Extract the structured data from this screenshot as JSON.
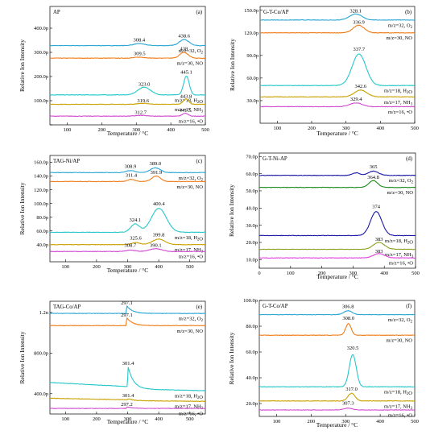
{
  "y_axis_label": "Relative Ion Intensity",
  "x_axis_label": "Temperature / °C",
  "chart_data": [
    {
      "type": "line",
      "panel": "(a)",
      "title": "AP",
      "xlim": [
        50,
        500
      ],
      "ylim": [
        0,
        490
      ],
      "yticks": [
        0,
        100,
        200,
        300,
        400
      ],
      "ytick_labels": [
        "",
        "100.0p",
        "200.0p",
        "300.0p",
        "400.0p"
      ],
      "xticks": [
        100,
        200,
        300,
        400,
        500
      ],
      "series": [
        {
          "name": "m/z=32, O₂",
          "color": "#2aa7d5",
          "base": 328,
          "shoulders": [
            [
              308.4,
              8,
              16
            ]
          ],
          "peaks": [
            [
              438.6,
              25,
              14
            ]
          ]
        },
        {
          "name": "m/z=30, NO",
          "color": "#f07d1a",
          "base": 276,
          "shoulders": [
            [
              309.5,
              4,
              16
            ]
          ],
          "peaks": [
            [
              438.0,
              24,
              12
            ]
          ]
        },
        {
          "name": "m/z=18, H₂O",
          "color": "#27c7c9",
          "base": 124,
          "shoulders": [
            [
              323.0,
              32,
              18
            ]
          ],
          "peaks": [
            [
              445.1,
              78,
              8
            ]
          ]
        },
        {
          "name": "m/z=17, NH₃",
          "color": "#c9a100",
          "base": 85,
          "shoulders": [
            [
              319.6,
              4,
              16
            ]
          ],
          "peaks": [
            [
              443.8,
              22,
              8
            ]
          ]
        },
        {
          "name": "m/z=16, •O",
          "color": "#d14bd1",
          "base": 36,
          "shoulders": [
            [
              312.7,
              3,
              16
            ]
          ],
          "peaks": [
            [
              441.5,
              12,
              8
            ]
          ]
        }
      ],
      "annotations": [
        {
          "text": "308.4",
          "x": 308.4,
          "y": 345
        },
        {
          "text": "438.6",
          "x": 438.6,
          "y": 362
        },
        {
          "text": "309.5",
          "x": 309.5,
          "y": 289
        },
        {
          "text": "438",
          "x": 438.0,
          "y": 308
        },
        {
          "text": "445.1",
          "x": 445.1,
          "y": 211
        },
        {
          "text": "323.0",
          "x": 323.0,
          "y": 162
        },
        {
          "text": "319.6",
          "x": 319.6,
          "y": 94
        },
        {
          "text": "443.8",
          "x": 443.8,
          "y": 111
        },
        {
          "text": "312.7",
          "x": 312.7,
          "y": 45
        },
        {
          "text": "441.5",
          "x": 441.5,
          "y": 54
        }
      ]
    },
    {
      "type": "line",
      "panel": "(b)",
      "title": "G-T-Cu/AP",
      "xlim": [
        50,
        500
      ],
      "ylim": [
        0,
        155
      ],
      "yticks": [
        30,
        60,
        90,
        120,
        150
      ],
      "ytick_labels": [
        "30.0p",
        "60.0p",
        "90.0p",
        "120.0p",
        "150.0p"
      ],
      "xticks": [
        100,
        200,
        300,
        400,
        500
      ],
      "series": [
        {
          "name": "m/z=32, O₂",
          "color": "#2aa7d5",
          "base": 137,
          "shoulders": [],
          "peaks": [
            [
              328.1,
              8,
              18
            ]
          ]
        },
        {
          "name": "m/z=30, NO",
          "color": "#f07d1a",
          "base": 120,
          "shoulders": [],
          "peaks": [
            [
              336.9,
              10,
              16
            ]
          ]
        },
        {
          "name": "m/z=18, H₂O",
          "color": "#27c7c9",
          "base": 50,
          "shoulders": [],
          "peaks": [
            [
              337.7,
              42,
              20
            ]
          ]
        },
        {
          "name": "m/z=17, NH₃",
          "color": "#c9a100",
          "base": 35,
          "shoulders": [],
          "peaks": [
            [
              342.6,
              9,
              18
            ]
          ]
        },
        {
          "name": "m/z=16, •O",
          "color": "#d14bd1",
          "base": 22,
          "shoulders": [],
          "peaks": [
            [
              329.4,
              5,
              18
            ]
          ]
        }
      ],
      "annotations": [
        {
          "text": "328.1",
          "x": 328.1,
          "y": 147
        },
        {
          "text": "336.9",
          "x": 336.9,
          "y": 132
        },
        {
          "text": "337.7",
          "x": 337.7,
          "y": 96
        },
        {
          "text": "342.6",
          "x": 342.6,
          "y": 47
        },
        {
          "text": "329.4",
          "x": 329.4,
          "y": 30
        }
      ]
    },
    {
      "type": "line",
      "panel": "(c)",
      "title": "TAG-Ni/AP",
      "xlim": [
        50,
        550
      ],
      "ylim": [
        15,
        170
      ],
      "yticks": [
        40,
        60,
        80,
        100,
        120,
        140,
        160
      ],
      "ytick_labels": [
        "40.0p",
        "60.0p",
        "80.0p",
        "100.0p",
        "120.0p",
        "140.0p",
        "160.0p"
      ],
      "xticks": [
        100,
        200,
        300,
        400,
        500
      ],
      "series": [
        {
          "name": "m/z=32, O₂",
          "color": "#2aa7d5",
          "base": 145,
          "shoulders": [
            [
              308.9,
              3,
              14
            ]
          ],
          "peaks": [
            [
              389.0,
              7,
              16
            ]
          ]
        },
        {
          "name": "m/z=30, NO",
          "color": "#f07d1a",
          "base": 132,
          "shoulders": [
            [
              311.4,
              3,
              12
            ]
          ],
          "peaks": [
            [
              391.9,
              8,
              14
            ]
          ]
        },
        {
          "name": "m/z=18, H₂O",
          "color": "#27c7c9",
          "base": 58,
          "shoulders": [
            [
              324.1,
              12,
              14
            ]
          ],
          "peaks": [
            [
              400.4,
              35,
              24
            ]
          ]
        },
        {
          "name": "m/z=17, NH₃",
          "color": "#c9a100",
          "base": 40,
          "shoulders": [
            [
              325.6,
              3,
              14
            ]
          ],
          "peaks": [
            [
              399.8,
              8,
              20
            ]
          ]
        },
        {
          "name": "m/z=16, •O",
          "color": "#d14bd1",
          "base": 30,
          "shoulders": [
            [
              308.7,
              2,
              14
            ]
          ],
          "peaks": [
            [
              390.1,
              4,
              20
            ]
          ]
        }
      ],
      "annotations": [
        {
          "text": "308.9",
          "x": 308.9,
          "y": 152
        },
        {
          "text": "389.0",
          "x": 389.0,
          "y": 156
        },
        {
          "text": "311.4",
          "x": 311.4,
          "y": 139
        },
        {
          "text": "391.9",
          "x": 391.9,
          "y": 143
        },
        {
          "text": "400.4",
          "x": 400.4,
          "y": 97
        },
        {
          "text": "324.1",
          "x": 324.1,
          "y": 74
        },
        {
          "text": "399.8",
          "x": 399.8,
          "y": 52
        },
        {
          "text": "325.6",
          "x": 325.6,
          "y": 47
        },
        {
          "text": "308.7",
          "x": 308.7,
          "y": 37
        },
        {
          "text": "390.1",
          "x": 390.1,
          "y": 37
        }
      ]
    },
    {
      "type": "line",
      "panel": "(d)",
      "title": "G-T-Ni-AP",
      "xlim": [
        0,
        500
      ],
      "ylim": [
        5,
        72
      ],
      "yticks": [
        10,
        20,
        30,
        40,
        50,
        60,
        70
      ],
      "ytick_labels": [
        "10.0p",
        "20.0p",
        "30.0p",
        "40.0p",
        "50.0p",
        "60.0p",
        "70.0p"
      ],
      "xticks": [
        0,
        100,
        200,
        300,
        400,
        500
      ],
      "series": [
        {
          "name": "m/z=32, O₂",
          "color": "#1a1aa8",
          "base": 59,
          "shoulders": [
            [
              310,
              1.5,
              12
            ]
          ],
          "peaks": [
            [
              365,
              2.5,
              16
            ]
          ]
        },
        {
          "name": "m/z=30, NO",
          "color": "#1a8a1a",
          "base": 52,
          "shoulders": [],
          "peaks": [
            [
              364.8,
              4,
              14
            ]
          ]
        },
        {
          "name": "m/z=18, H₂O",
          "color": "#1a1aa8",
          "base": 24,
          "shoulders": [],
          "peaks": [
            [
              374,
              14,
              18
            ]
          ]
        },
        {
          "name": "m/z=17, NH₃",
          "color": "#8aa020",
          "base": 16,
          "shoulders": [],
          "peaks": [
            [
              383,
              4,
              18
            ]
          ]
        },
        {
          "name": "m/z=16, •O",
          "color": "#e040e0",
          "base": 11,
          "shoulders": [],
          "peaks": [
            [
              383,
              2.5,
              18
            ]
          ]
        }
      ],
      "annotations": [
        {
          "text": "365",
          "x": 365,
          "y": 63
        },
        {
          "text": "364.8",
          "x": 364.8,
          "y": 57
        },
        {
          "text": "374",
          "x": 374,
          "y": 40
        },
        {
          "text": "383",
          "x": 383,
          "y": 21
        },
        {
          "text": "383",
          "x": 383,
          "y": 14
        }
      ]
    },
    {
      "type": "line",
      "panel": "(e)",
      "title": "TAG-Co/AP",
      "xlim": [
        50,
        550
      ],
      "ylim": [
        200,
        1310
      ],
      "yticks": [
        400,
        800,
        1200
      ],
      "ytick_labels": [
        "400.0p",
        "800.0p",
        "1.2n"
      ],
      "xticks": [
        100,
        200,
        300,
        400,
        500
      ],
      "series": [
        {
          "name": "m/z=32, O₂",
          "color": "#2aa7d5",
          "base": 1190,
          "sharp": [
            297.1,
            75
          ],
          "slope": 0
        },
        {
          "name": "m/z=30, NO",
          "color": "#f07d1a",
          "base": 1070,
          "sharp": [
            297.1,
            80
          ],
          "slope": 0
        },
        {
          "name": "m/z=18, H₂O",
          "color": "#27c7c9",
          "base": 430,
          "sharp": [
            301.4,
            220
          ],
          "slope": 80
        },
        {
          "name": "m/z=17, NH₃",
          "color": "#c9a100",
          "base": 325,
          "sharp": [
            301.4,
            20
          ],
          "slope": 30
        },
        {
          "name": "m/z=16, •O",
          "color": "#d14bd1",
          "base": 255,
          "sharp": [
            297.2,
            15
          ],
          "slope": 0
        }
      ],
      "annotations": [
        {
          "text": "297.1",
          "x": 297.1,
          "y": 1278
        },
        {
          "text": "297.1",
          "x": 297.1,
          "y": 1160
        },
        {
          "text": "301.4",
          "x": 301.4,
          "y": 685
        },
        {
          "text": "301.4",
          "x": 301.4,
          "y": 365
        },
        {
          "text": "297.2",
          "x": 297.2,
          "y": 280
        }
      ]
    },
    {
      "type": "line",
      "panel": "(f)",
      "title": "G-T-Co/AP",
      "xlim": [
        50,
        500
      ],
      "ylim": [
        10,
        100
      ],
      "yticks": [
        20,
        40,
        60,
        80,
        100
      ],
      "ytick_labels": [
        "20.0p",
        "40.0p",
        "60.0p",
        "80.0p",
        "100.0p"
      ],
      "xticks": [
        100,
        200,
        300,
        400,
        500
      ],
      "series": [
        {
          "name": "m/z=32, O₂",
          "color": "#2aa7d5",
          "base": 89,
          "shoulders": [],
          "peaks": [
            [
              306.8,
              3,
              12
            ]
          ]
        },
        {
          "name": "m/z=30, NO",
          "color": "#f07d1a",
          "base": 73,
          "shoulders": [],
          "peaks": [
            [
              308.0,
              9,
              8
            ]
          ]
        },
        {
          "name": "m/z=18, H₂O",
          "color": "#27c7c9",
          "base": 33,
          "shoulders": [],
          "peaks": [
            [
              320.5,
              25,
              10
            ]
          ]
        },
        {
          "name": "m/z=17, NH₃",
          "color": "#c9a100",
          "base": 22,
          "shoulders": [],
          "peaks": [
            [
              317.0,
              6,
              10
            ]
          ]
        },
        {
          "name": "m/z=16, •O",
          "color": "#d14bd1",
          "base": 15,
          "shoulders": [],
          "peaks": [
            [
              307.3,
              1.5,
              12
            ]
          ]
        }
      ],
      "annotations": [
        {
          "text": "306.8",
          "x": 306.8,
          "y": 94
        },
        {
          "text": "308.0",
          "x": 308.0,
          "y": 85
        },
        {
          "text": "320.5",
          "x": 320.5,
          "y": 62
        },
        {
          "text": "317.0",
          "x": 317.0,
          "y": 30
        },
        {
          "text": "307.3",
          "x": 307.3,
          "y": 19
        }
      ]
    }
  ]
}
